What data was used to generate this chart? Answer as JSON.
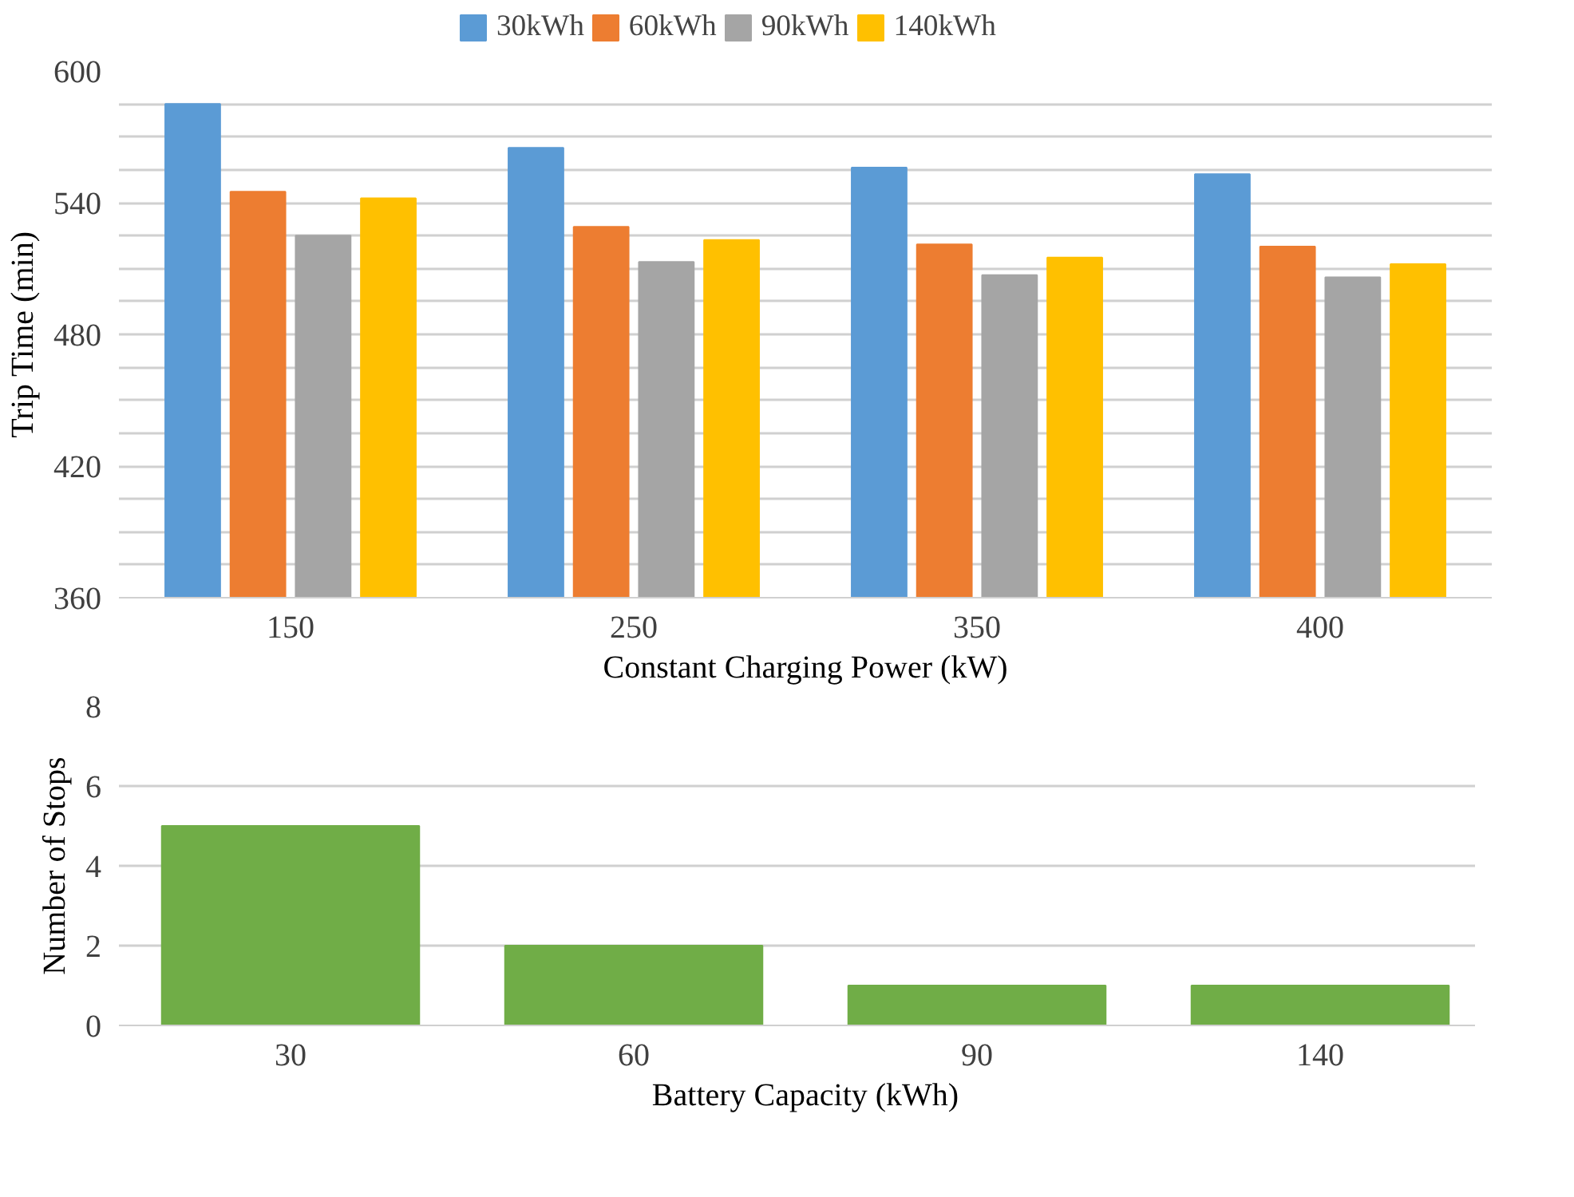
{
  "chart_data": [
    {
      "type": "bar",
      "categories": [
        "150",
        "250",
        "350",
        "400"
      ],
      "xlabel": "Constant Charging Power (kW)",
      "ylabel": "Trip Time (min)",
      "series": [
        {
          "name": "30kWh",
          "color": "#5b9bd5",
          "values": [
            585,
            565,
            556,
            553
          ]
        },
        {
          "name": "60kWh",
          "color": "#ed7d31",
          "values": [
            545,
            529,
            521,
            520
          ]
        },
        {
          "name": "90kWh",
          "color": "#a5a5a5",
          "values": [
            525,
            513,
            507,
            506
          ]
        },
        {
          "name": "140kWh",
          "color": "#ffc000",
          "values": [
            542,
            523,
            515,
            512
          ]
        }
      ],
      "ylim": [
        360,
        600
      ],
      "yticks": [
        360,
        {
          "value": 375,
          "label": null
        },
        {
          "value": 390,
          "label": null
        },
        {
          "value": 405,
          "label": null
        },
        420,
        {
          "value": 435,
          "label": null
        },
        {
          "value": 450,
          "label": null
        },
        {
          "value": 465,
          "label": null
        },
        480,
        {
          "value": 495,
          "label": null
        },
        {
          "value": 510,
          "label": null
        },
        {
          "value": 525,
          "label": null
        },
        540,
        {
          "value": 555,
          "label": null
        },
        {
          "value": 570,
          "label": null
        },
        {
          "value": 585,
          "label": null
        },
        600
      ],
      "grid": "y",
      "legend": "top"
    },
    {
      "type": "bar",
      "categories": [
        "30",
        "60",
        "90",
        "140"
      ],
      "xlabel": "Battery Capacity (kWh)",
      "ylabel": "Number of Stops",
      "series": [
        {
          "color": "#70ad47",
          "values": [
            5,
            2,
            1,
            1
          ]
        }
      ],
      "ylim": [
        0,
        8
      ],
      "yticks": [
        0,
        2,
        4,
        6,
        8
      ],
      "grid": "y"
    }
  ]
}
